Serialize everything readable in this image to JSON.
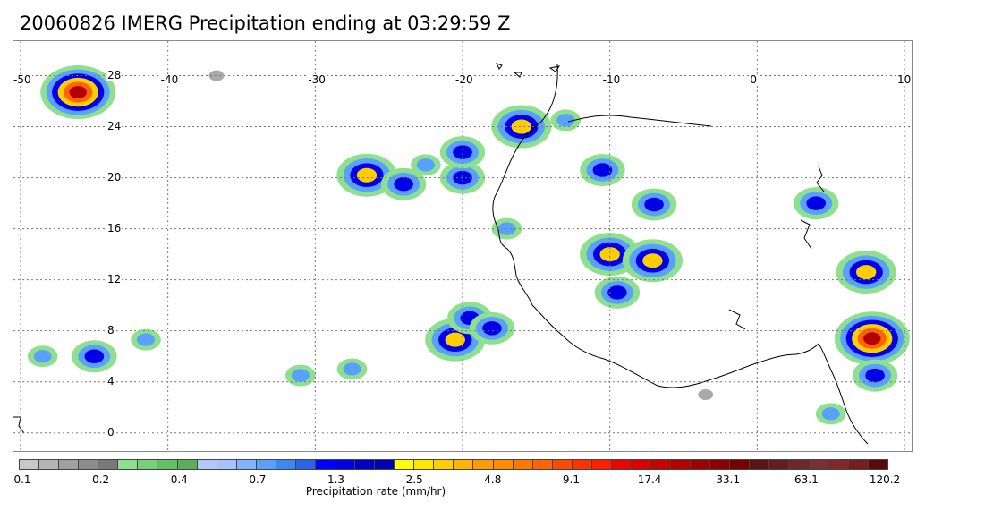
{
  "title": "20060826 IMERG Precipitation ending at 03:29:59 Z",
  "map": {
    "lon_range": [
      -50,
      10
    ],
    "lat_range": [
      -1,
      30
    ],
    "lon_ticks": [
      "-50",
      "-40",
      "-30",
      "-20",
      "-10",
      "0",
      "10"
    ],
    "lon_tick_values": [
      -50,
      -40,
      -30,
      -20,
      -10,
      0,
      10
    ],
    "lat_ticks": [
      "0",
      "4",
      "8",
      "12",
      "16",
      "20",
      "24",
      "28"
    ],
    "lat_tick_values": [
      0,
      4,
      8,
      12,
      16,
      20,
      24,
      28
    ],
    "gridlines": "dashed",
    "coastline_color": "#000000",
    "precip_cells": [
      {
        "lon": -46.1,
        "lat": 26.7,
        "intensity": 4
      },
      {
        "lon": -36.7,
        "lat": 28.0,
        "intensity": 0
      },
      {
        "lon": -20.0,
        "lat": 20.0,
        "intensity": 2
      },
      {
        "lon": -26.5,
        "lat": 20.2,
        "intensity": 3
      },
      {
        "lon": -24.0,
        "lat": 19.5,
        "intensity": 2
      },
      {
        "lon": -20.0,
        "lat": 22.0,
        "intensity": 2
      },
      {
        "lon": -16.0,
        "lat": 24.0,
        "intensity": 3
      },
      {
        "lon": -13.0,
        "lat": 24.5,
        "intensity": 1
      },
      {
        "lon": -10.5,
        "lat": 20.6,
        "intensity": 2
      },
      {
        "lon": -7.0,
        "lat": 17.9,
        "intensity": 2
      },
      {
        "lon": -10.0,
        "lat": 14.0,
        "intensity": 3
      },
      {
        "lon": -7.1,
        "lat": 13.5,
        "intensity": 3
      },
      {
        "lon": -9.5,
        "lat": 11.0,
        "intensity": 2
      },
      {
        "lon": 4.0,
        "lat": 18.0,
        "intensity": 2
      },
      {
        "lon": 7.4,
        "lat": 12.6,
        "intensity": 3
      },
      {
        "lon": 7.8,
        "lat": 7.4,
        "intensity": 4
      },
      {
        "lon": 8.0,
        "lat": 4.5,
        "intensity": 2
      },
      {
        "lon": -20.5,
        "lat": 7.3,
        "intensity": 3
      },
      {
        "lon": -19.5,
        "lat": 9.0,
        "intensity": 2
      },
      {
        "lon": -18.0,
        "lat": 8.2,
        "intensity": 2
      },
      {
        "lon": -27.5,
        "lat": 5.0,
        "intensity": 1
      },
      {
        "lon": -31.0,
        "lat": 4.5,
        "intensity": 1
      },
      {
        "lon": -45.0,
        "lat": 6.0,
        "intensity": 2
      },
      {
        "lon": -41.5,
        "lat": 7.3,
        "intensity": 1
      },
      {
        "lon": -48.5,
        "lat": 6.0,
        "intensity": 1
      },
      {
        "lon": -3.5,
        "lat": 3.0,
        "intensity": 0
      },
      {
        "lon": 5.0,
        "lat": 1.5,
        "intensity": 1
      },
      {
        "lon": -22.5,
        "lat": 21.0,
        "intensity": 1
      },
      {
        "lon": -17.0,
        "lat": 16.0,
        "intensity": 1
      }
    ]
  },
  "legend": {
    "title": "Precipitation rate (mm/hr)",
    "colors": [
      "#c8c8c8",
      "#b4b4b4",
      "#a0a0a0",
      "#8c8c8c",
      "#787878",
      "#8ee08e",
      "#78d078",
      "#64c064",
      "#58b058",
      "#b4c8f5",
      "#a5c4ff",
      "#7fb4ff",
      "#5aa0ff",
      "#3c87f0",
      "#2864e6",
      "#0000ff",
      "#0000e6",
      "#0000c8",
      "#0000b4",
      "#ffff00",
      "#ffe600",
      "#ffcd00",
      "#ffb400",
      "#ff9b00",
      "#ff8c00",
      "#ff7800",
      "#ff6400",
      "#ff4b00",
      "#ff3200",
      "#ff1e00",
      "#f00000",
      "#dc0000",
      "#c80000",
      "#b40000",
      "#a00000",
      "#8c0000",
      "#780000",
      "#5a1414",
      "#641e1e",
      "#6e2828",
      "#783232",
      "#822828",
      "#781e1e",
      "#5a0a0a"
    ],
    "tick_labels": [
      "0.1",
      "0.2",
      "0.4",
      "0.7",
      "1.3",
      "2.5",
      "4.8",
      "9.1",
      "17.4",
      "33.1",
      "63.1",
      "120.2"
    ]
  }
}
